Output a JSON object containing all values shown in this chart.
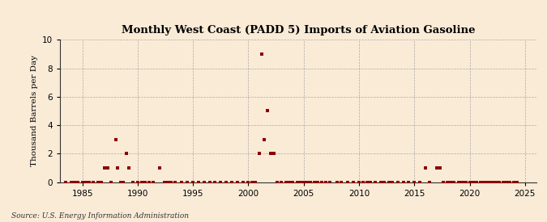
{
  "title": "Monthly West Coast (PADD 5) Imports of Aviation Gasoline",
  "ylabel": "Thousand Barrels per Day",
  "source": "Source: U.S. Energy Information Administration",
  "background_color": "#faebd7",
  "marker_color": "#8b0000",
  "xlim": [
    1983,
    2026
  ],
  "ylim": [
    0,
    10
  ],
  "yticks": [
    0,
    2,
    4,
    6,
    8,
    10
  ],
  "xticks": [
    1985,
    1990,
    1995,
    2000,
    2005,
    2010,
    2015,
    2020,
    2025
  ],
  "data_points": [
    [
      1983.5,
      0
    ],
    [
      1984.0,
      0
    ],
    [
      1984.3,
      0
    ],
    [
      1984.6,
      0
    ],
    [
      1985.0,
      0
    ],
    [
      1985.3,
      0
    ],
    [
      1985.6,
      0
    ],
    [
      1986.0,
      0
    ],
    [
      1986.4,
      0
    ],
    [
      1986.7,
      0
    ],
    [
      1987.0,
      1
    ],
    [
      1987.3,
      1
    ],
    [
      1987.6,
      0
    ],
    [
      1988.0,
      3
    ],
    [
      1988.2,
      1
    ],
    [
      1988.5,
      0
    ],
    [
      1988.7,
      0
    ],
    [
      1989.0,
      2
    ],
    [
      1989.2,
      1
    ],
    [
      1989.6,
      0
    ],
    [
      1990.0,
      0
    ],
    [
      1990.4,
      0
    ],
    [
      1990.7,
      0
    ],
    [
      1991.0,
      0
    ],
    [
      1991.4,
      0
    ],
    [
      1992.0,
      1
    ],
    [
      1992.4,
      0
    ],
    [
      1992.7,
      0
    ],
    [
      1993.0,
      0
    ],
    [
      1993.4,
      0
    ],
    [
      1994.0,
      0
    ],
    [
      1994.5,
      0
    ],
    [
      1995.0,
      0
    ],
    [
      1995.5,
      0
    ],
    [
      1996.0,
      0
    ],
    [
      1996.5,
      0
    ],
    [
      1997.0,
      0
    ],
    [
      1997.5,
      0
    ],
    [
      1998.0,
      0
    ],
    [
      1998.5,
      0
    ],
    [
      1999.0,
      0
    ],
    [
      1999.5,
      0
    ],
    [
      2000.0,
      0
    ],
    [
      2000.3,
      0
    ],
    [
      2000.6,
      0
    ],
    [
      2001.0,
      2
    ],
    [
      2001.2,
      9
    ],
    [
      2001.4,
      3
    ],
    [
      2001.7,
      5
    ],
    [
      2002.0,
      2
    ],
    [
      2002.3,
      2
    ],
    [
      2002.6,
      0
    ],
    [
      2003.0,
      0
    ],
    [
      2003.4,
      0
    ],
    [
      2003.7,
      0
    ],
    [
      2004.0,
      0
    ],
    [
      2004.4,
      0
    ],
    [
      2004.7,
      0
    ],
    [
      2005.0,
      0
    ],
    [
      2005.3,
      0
    ],
    [
      2005.6,
      0
    ],
    [
      2006.0,
      0
    ],
    [
      2006.3,
      0
    ],
    [
      2006.6,
      0
    ],
    [
      2007.0,
      0
    ],
    [
      2007.4,
      0
    ],
    [
      2008.0,
      0
    ],
    [
      2008.4,
      0
    ],
    [
      2009.0,
      0
    ],
    [
      2009.5,
      0
    ],
    [
      2010.0,
      0
    ],
    [
      2010.4,
      0
    ],
    [
      2010.7,
      0
    ],
    [
      2011.0,
      0
    ],
    [
      2011.5,
      0
    ],
    [
      2012.0,
      0
    ],
    [
      2012.3,
      0
    ],
    [
      2012.7,
      0
    ],
    [
      2013.0,
      0
    ],
    [
      2013.5,
      0
    ],
    [
      2014.0,
      0
    ],
    [
      2014.5,
      0
    ],
    [
      2015.0,
      0
    ],
    [
      2015.5,
      0
    ],
    [
      2016.0,
      1
    ],
    [
      2016.4,
      0
    ],
    [
      2017.0,
      1
    ],
    [
      2017.3,
      1
    ],
    [
      2017.6,
      0
    ],
    [
      2018.0,
      0
    ],
    [
      2018.3,
      0
    ],
    [
      2018.6,
      0
    ],
    [
      2019.0,
      0
    ],
    [
      2019.2,
      0
    ],
    [
      2019.5,
      0
    ],
    [
      2019.7,
      0
    ],
    [
      2020.0,
      0
    ],
    [
      2020.3,
      0
    ],
    [
      2020.6,
      0
    ],
    [
      2021.0,
      0
    ],
    [
      2021.2,
      0
    ],
    [
      2021.4,
      0
    ],
    [
      2021.7,
      0
    ],
    [
      2022.0,
      0
    ],
    [
      2022.2,
      0
    ],
    [
      2022.5,
      0
    ],
    [
      2022.7,
      0
    ],
    [
      2023.0,
      0
    ],
    [
      2023.3,
      0
    ],
    [
      2023.6,
      0
    ],
    [
      2024.0,
      0
    ],
    [
      2024.3,
      0
    ]
  ]
}
